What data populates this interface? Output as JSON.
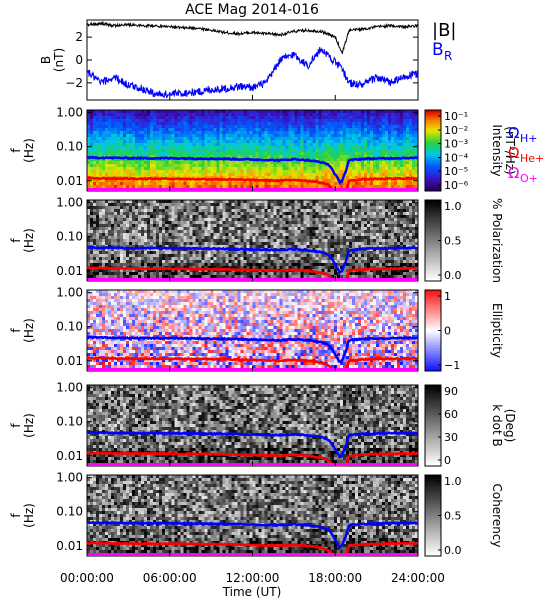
{
  "title": "ACE Mag 2014-016",
  "xaxis": {
    "label": "Time (UT)",
    "ticks": [
      "00:00:00",
      "06:00:00",
      "12:00:00",
      "18:00:00",
      "24:00:00"
    ],
    "range_hours": [
      0,
      24
    ]
  },
  "colors": {
    "B_total": "#000000",
    "B_R": "#0000ff",
    "H_plus": "#0000ff",
    "He_plus": "#ff0000",
    "O_plus": "#ff00ff"
  },
  "chart_data": [
    {
      "type": "line",
      "panel": "field",
      "ylabel": [
        "B",
        "(nT)"
      ],
      "ylim": [
        -3.5,
        3.5
      ],
      "ytick_values": [
        -2,
        0,
        2
      ],
      "ytick_labels": [
        "−2",
        "0",
        "2"
      ],
      "legend": [
        "|B|",
        "B",
        "R"
      ],
      "series": [
        {
          "name": "|B|",
          "color": "#000000",
          "x": [
            0,
            1,
            2,
            3,
            4,
            5,
            6,
            7,
            8,
            9,
            10,
            11,
            12,
            13,
            14,
            15,
            16,
            17,
            18,
            18.5,
            19,
            20,
            21,
            22,
            23,
            24
          ],
          "y": [
            3.1,
            3.2,
            3.0,
            3.1,
            3.0,
            3.0,
            2.9,
            2.8,
            2.8,
            2.6,
            2.4,
            2.3,
            2.4,
            2.3,
            2.2,
            2.5,
            2.6,
            2.5,
            2.0,
            0.6,
            2.6,
            2.7,
            2.9,
            3.0,
            2.9,
            3.0
          ]
        },
        {
          "name": "B_R",
          "color": "#0000ff",
          "x": [
            0,
            1,
            2,
            3,
            4,
            5,
            6,
            7,
            8,
            9,
            10,
            11,
            12,
            13,
            14,
            15,
            16,
            17,
            18,
            18.5,
            19,
            20,
            21,
            22,
            23,
            24
          ],
          "y": [
            -1.0,
            -2.0,
            -1.5,
            -2.2,
            -2.5,
            -3.0,
            -3.0,
            -2.9,
            -2.8,
            -2.6,
            -2.5,
            -2.3,
            -2.4,
            -2.0,
            0.0,
            0.5,
            -0.5,
            1.0,
            -0.2,
            -0.8,
            -2.0,
            -2.2,
            -1.5,
            -2.0,
            -1.5,
            -1.2
          ]
        }
      ]
    },
    {
      "type": "heatmap",
      "panel": "intensity",
      "ylabel": [
        "f",
        "(Hz)"
      ],
      "colorbar": {
        "label": [
          "Intensity",
          "(nT²/Hz)"
        ],
        "ticks": [
          "10⁻¹",
          "10⁻²",
          "10⁻³",
          "10⁻⁴",
          "10⁻⁵",
          "10⁻⁶"
        ],
        "scale": "rainbow"
      }
    },
    {
      "type": "heatmap",
      "panel": "polarization",
      "ylabel": [
        "f",
        "(Hz)"
      ],
      "colorbar": {
        "label": [
          "% Polarization"
        ],
        "ticks": [
          "1.0",
          "0.5",
          "0.0"
        ],
        "scale": "gray"
      }
    },
    {
      "type": "heatmap",
      "panel": "ellipticity",
      "ylabel": [
        "f",
        "(Hz)"
      ],
      "colorbar": {
        "label": [
          "Ellipticity"
        ],
        "ticks": [
          "1",
          "0",
          "−1"
        ],
        "scale": "bwr"
      }
    },
    {
      "type": "heatmap",
      "panel": "kdotb",
      "ylabel": [
        "f",
        "(Hz)"
      ],
      "colorbar": {
        "label": [
          "k dot B",
          "(Deg)"
        ],
        "ticks": [
          "90",
          "60",
          "30",
          "0"
        ],
        "scale": "gray"
      }
    },
    {
      "type": "heatmap",
      "panel": "coherency",
      "ylabel": [
        "f",
        "(Hz)"
      ],
      "colorbar": {
        "label": [
          "Coherency"
        ],
        "ticks": [
          "1.0",
          "0.5",
          "0.0"
        ],
        "scale": "gray"
      }
    }
  ],
  "frequency_axis": {
    "scale": "log",
    "ylim": [
      0.005,
      1.2
    ],
    "ticks": [
      "1.00",
      "0.10",
      "0.01"
    ]
  },
  "gyrofrequency_lines": {
    "legend": [
      [
        "Ω",
        "H+"
      ],
      [
        "Ω",
        "He+"
      ],
      [
        "Ω",
        "O+"
      ]
    ],
    "x": [
      0,
      2,
      4,
      6,
      8,
      10,
      12,
      14,
      15,
      16,
      17,
      17.5,
      18,
      18.3,
      18.5,
      18.8,
      19,
      20,
      22,
      24
    ],
    "H_plus_hz": [
      0.048,
      0.047,
      0.046,
      0.046,
      0.045,
      0.044,
      0.042,
      0.04,
      0.043,
      0.04,
      0.035,
      0.03,
      0.015,
      0.009,
      0.01,
      0.02,
      0.04,
      0.044,
      0.046,
      0.047
    ],
    "He_plus_hz": [
      0.012,
      0.0118,
      0.0115,
      0.0115,
      0.0112,
      0.011,
      0.0105,
      0.01,
      0.0107,
      0.01,
      0.0088,
      0.0075,
      0.0045,
      0.003,
      0.0035,
      0.005,
      0.01,
      0.011,
      0.0115,
      0.0118
    ],
    "O_plus_hz": [
      0.003,
      0.003,
      0.003,
      0.003,
      0.003,
      0.003,
      0.003,
      0.003,
      0.003,
      0.003,
      0.003,
      0.003,
      0.003,
      0.003,
      0.003,
      0.003,
      0.003,
      0.003,
      0.003,
      0.003
    ]
  }
}
